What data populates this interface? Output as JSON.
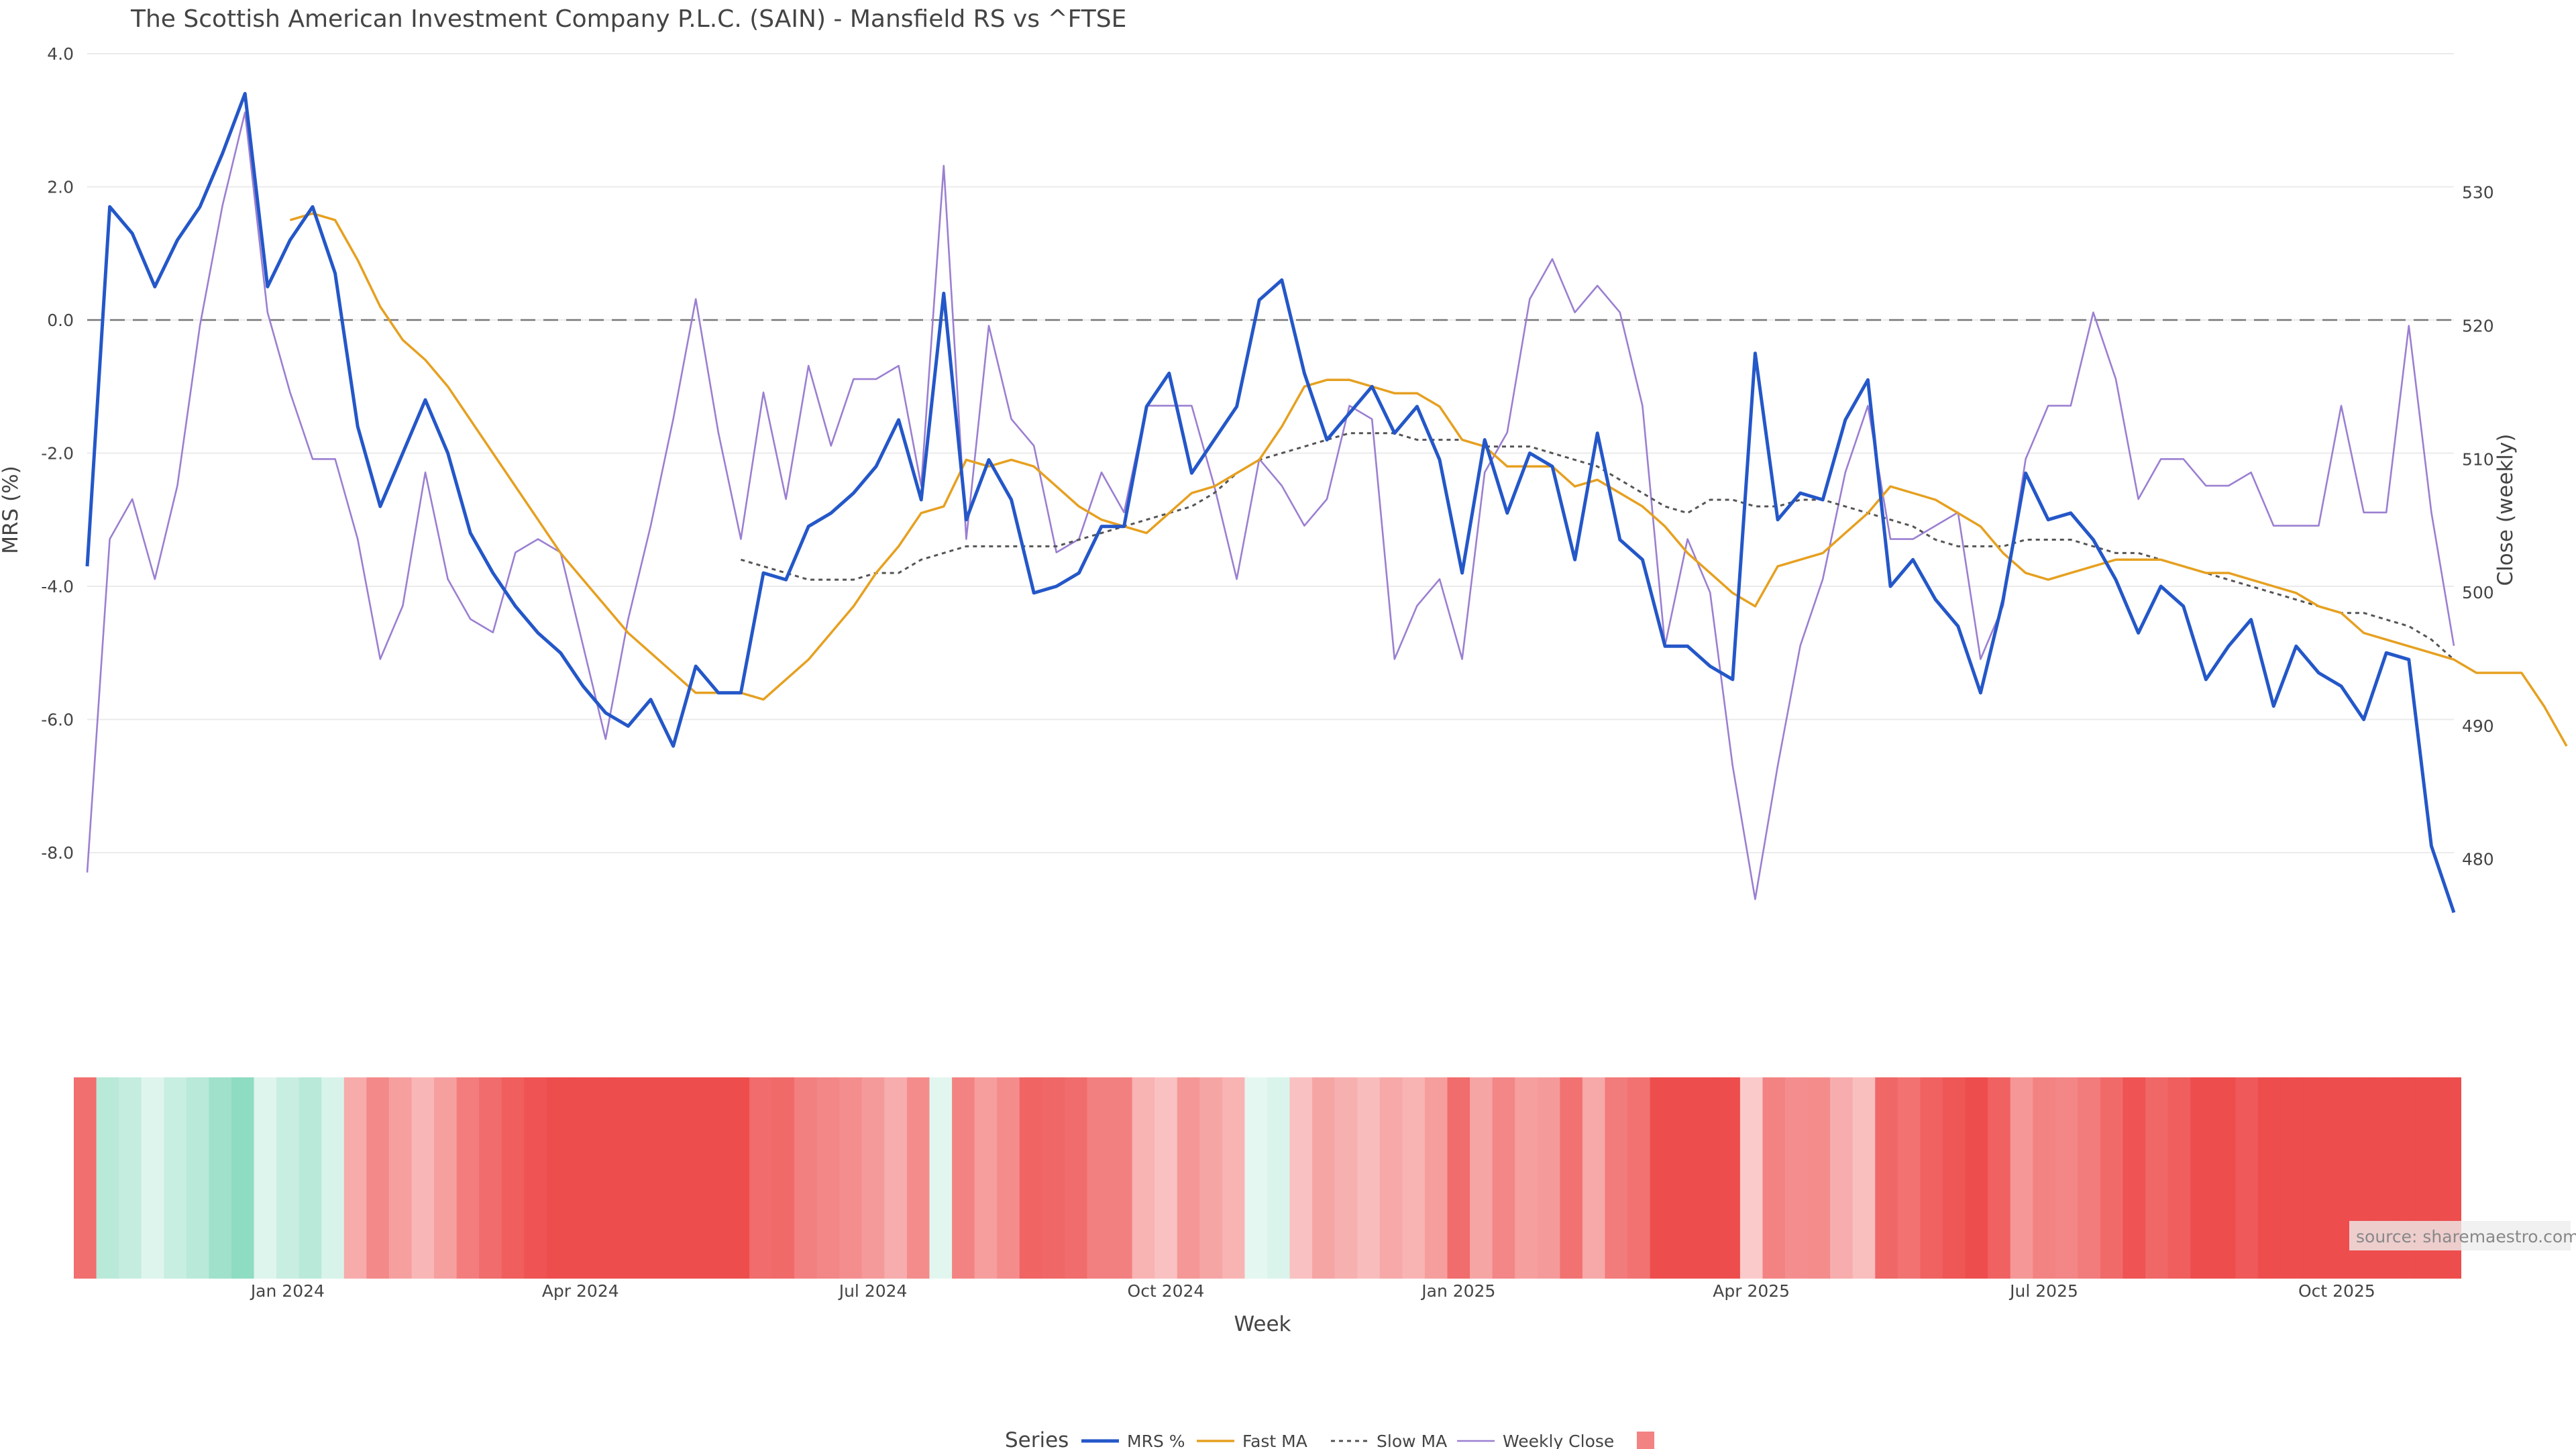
{
  "title": "The Scottish American Investment Company P.L.C. (SAIN) - Mansfield RS vs ^FTSE",
  "source_label": "source: sharemaestro.com",
  "colors": {
    "mrs": "#2457c8",
    "fast_ma": "#e6a020",
    "slow_ma": "#555555",
    "weekly_close": "#9b7fd1",
    "zero_line": "#777777",
    "positive_strip": "#8edcc1",
    "negative_strip": "#ee4d4d"
  },
  "chart_data": {
    "type": "line",
    "title": "The Scottish American Investment Company P.L.C. (SAIN) - Mansfield RS vs ^FTSE",
    "xlabel": "Week",
    "ylabel": "MRS (%)",
    "y2label": "Close (weekly)",
    "ylim": [
      -9.3,
      4.0
    ],
    "y2lim": [
      474,
      540.4
    ],
    "yticks": [
      4.0,
      2.0,
      0.0,
      -2.0,
      -4.0,
      -6.0,
      -8.0
    ],
    "ytick_labels": [
      "4.0",
      "2.0",
      "0.0",
      "-2.0",
      "-4.0",
      "-6.0",
      "-8.0"
    ],
    "y2ticks": [
      530,
      520,
      510,
      500,
      490,
      480
    ],
    "y2tick_labels": [
      "530",
      "520",
      "510",
      "500",
      "490",
      "480"
    ],
    "xticks": [
      {
        "label": "Jan 2024",
        "week": 9
      },
      {
        "label": "Apr 2024",
        "week": 22
      },
      {
        "label": "Jul 2024",
        "week": 35
      },
      {
        "label": "Oct 2024",
        "week": 48
      },
      {
        "label": "Jan 2025",
        "week": 61
      },
      {
        "label": "Apr 2025",
        "week": 74
      },
      {
        "label": "Jul 2025",
        "week": 87
      },
      {
        "label": "Oct 2025",
        "week": 100
      }
    ],
    "zero_line": 0,
    "grid": true,
    "legend_title": "Series",
    "legend_position": "bottom",
    "series": [
      {
        "name": "MRS %",
        "axis": "left",
        "style": "solid",
        "start": 0,
        "values": [
          -3.7,
          1.7,
          1.3,
          0.5,
          1.2,
          1.7,
          2.5,
          3.4,
          0.5,
          1.2,
          1.7,
          0.7,
          -1.6,
          -2.8,
          -2.0,
          -1.2,
          -2.0,
          -3.2,
          -3.8,
          -4.3,
          -4.7,
          -5.0,
          -5.5,
          -5.9,
          -6.1,
          -5.7,
          -6.4,
          -5.2,
          -5.6,
          -5.6,
          -3.8,
          -3.9,
          -3.1,
          -2.9,
          -2.6,
          -2.2,
          -1.5,
          -2.7,
          0.4,
          -3.0,
          -2.1,
          -2.7,
          -4.1,
          -4.0,
          -3.8,
          -3.1,
          -3.1,
          -1.3,
          -0.8,
          -2.3,
          -1.8,
          -1.3,
          0.3,
          0.6,
          -0.8,
          -1.8,
          -1.4,
          -1.0,
          -1.7,
          -1.3,
          -2.1,
          -3.8,
          -1.8,
          -2.9,
          -2.0,
          -2.2,
          -3.6,
          -1.7,
          -3.3,
          -3.6,
          -4.9,
          -4.9,
          -5.2,
          -5.4,
          -0.5,
          -3.0,
          -2.6,
          -2.7,
          -1.5,
          -0.9,
          -4.0,
          -3.6,
          -4.2,
          -4.6,
          -5.6,
          -4.2,
          -2.3,
          -3.0,
          -2.9,
          -3.3,
          -3.9,
          -4.7,
          -4.0,
          -4.3,
          -5.4,
          -4.9,
          -4.5,
          -5.8,
          -4.9,
          -5.3,
          -5.5,
          -6.0,
          -5.0,
          -5.1,
          -7.9,
          -8.9
        ]
      },
      {
        "name": "Fast MA",
        "axis": "left",
        "style": "solid",
        "start": 9,
        "values": [
          1.5,
          1.6,
          1.5,
          0.9,
          0.2,
          -0.3,
          -0.6,
          -1.0,
          -1.5,
          -2.0,
          -2.5,
          -3.0,
          -3.5,
          -3.9,
          -4.3,
          -4.7,
          -5.0,
          -5.3,
          -5.6,
          -5.6,
          -5.6,
          -5.7,
          -5.4,
          -5.1,
          -4.7,
          -4.3,
          -3.8,
          -3.4,
          -2.9,
          -2.8,
          -2.1,
          -2.2,
          -2.1,
          -2.2,
          -2.5,
          -2.8,
          -3.0,
          -3.1,
          -3.2,
          -2.9,
          -2.6,
          -2.5,
          -2.3,
          -2.1,
          -1.6,
          -1.0,
          -0.9,
          -0.9,
          -1.0,
          -1.1,
          -1.1,
          -1.3,
          -1.8,
          -1.9,
          -2.2,
          -2.2,
          -2.2,
          -2.5,
          -2.4,
          -2.6,
          -2.8,
          -3.1,
          -3.5,
          -3.8,
          -4.1,
          -4.3,
          -3.7,
          -3.6,
          -3.5,
          -3.2,
          -2.9,
          -2.5,
          -2.6,
          -2.7,
          -2.9,
          -3.1,
          -3.5,
          -3.8,
          -3.9,
          -3.8,
          -3.7,
          -3.6,
          -3.6,
          -3.6,
          -3.7,
          -3.8,
          -3.8,
          -3.9,
          -4.0,
          -4.1,
          -4.3,
          -4.4,
          -4.7,
          -4.8,
          -4.9,
          -5.0,
          -5.1,
          -5.3,
          -5.3,
          -5.3,
          -5.8,
          -6.4
        ]
      },
      {
        "name": "Slow MA",
        "axis": "left",
        "style": "dotted",
        "start": 29,
        "values": [
          -3.6,
          -3.7,
          -3.8,
          -3.9,
          -3.9,
          -3.9,
          -3.8,
          -3.8,
          -3.6,
          -3.5,
          -3.4,
          -3.4,
          -3.4,
          -3.4,
          -3.4,
          -3.3,
          -3.2,
          -3.1,
          -3.0,
          -2.9,
          -2.8,
          -2.6,
          -2.3,
          -2.1,
          -2.0,
          -1.9,
          -1.8,
          -1.7,
          -1.7,
          -1.7,
          -1.8,
          -1.8,
          -1.8,
          -1.9,
          -1.9,
          -1.9,
          -2.0,
          -2.1,
          -2.2,
          -2.4,
          -2.6,
          -2.8,
          -2.9,
          -2.7,
          -2.7,
          -2.8,
          -2.8,
          -2.7,
          -2.7,
          -2.8,
          -2.9,
          -3.0,
          -3.1,
          -3.3,
          -3.4,
          -3.4,
          -3.4,
          -3.3,
          -3.3,
          -3.3,
          -3.4,
          -3.5,
          -3.5,
          -3.6,
          -3.7,
          -3.8,
          -3.9,
          -4.0,
          -4.1,
          -4.2,
          -4.3,
          -4.4,
          -4.4,
          -4.5,
          -4.6,
          -4.8,
          -5.1
        ]
      },
      {
        "name": "Weekly Close",
        "axis": "right",
        "style": "solid",
        "start": 0,
        "values": [
          479,
          504,
          507,
          501,
          508,
          520,
          529,
          536,
          521,
          515,
          510,
          510,
          504,
          495,
          499,
          509,
          501,
          498,
          497,
          503,
          504,
          503,
          496,
          489,
          498,
          505,
          513,
          522,
          512,
          504,
          515,
          507,
          517,
          511,
          516,
          516,
          517,
          508,
          532,
          504,
          520,
          513,
          511,
          503,
          504,
          509,
          506,
          514,
          514,
          514,
          508,
          501,
          510,
          508,
          505,
          507,
          514,
          513,
          495,
          499,
          501,
          495,
          509,
          512,
          522,
          525,
          521,
          523,
          521,
          514,
          496,
          504,
          500,
          487,
          477,
          487,
          496,
          501,
          509,
          514,
          504,
          504,
          505,
          506,
          495,
          499,
          510,
          514,
          514,
          521,
          516,
          507,
          510,
          510,
          508,
          508,
          509,
          505,
          505,
          505,
          514,
          506,
          506,
          520,
          506,
          496
        ]
      },
      {
        "name": "",
        "type": "heatmap",
        "values": [
          -3.7,
          1.7,
          1.3,
          0.5,
          1.2,
          1.7,
          2.5,
          3.4,
          0.5,
          1.2,
          1.7,
          0.7,
          -1.6,
          -2.8,
          -2.0,
          -1.2,
          -2.0,
          -3.2,
          -3.8,
          -4.3,
          -4.7,
          -5.0,
          -5.5,
          -5.9,
          -6.1,
          -5.7,
          -6.4,
          -5.2,
          -5.6,
          -5.6,
          -3.8,
          -3.9,
          -3.1,
          -2.9,
          -2.6,
          -2.2,
          -1.5,
          -2.7,
          0.4,
          -3.0,
          -2.1,
          -2.7,
          -4.1,
          -4.0,
          -3.8,
          -3.1,
          -3.1,
          -1.3,
          -0.8,
          -2.3,
          -1.8,
          -1.3,
          0.3,
          0.6,
          -0.8,
          -1.8,
          -1.4,
          -1.0,
          -1.7,
          -1.3,
          -2.1,
          -3.8,
          -1.8,
          -2.9,
          -2.0,
          -2.2,
          -3.6,
          -1.7,
          -3.3,
          -3.6,
          -4.9,
          -4.9,
          -5.2,
          -5.4,
          -0.5,
          -3.0,
          -2.6,
          -2.7,
          -1.5,
          -0.9,
          -4.0,
          -3.6,
          -4.2,
          -4.6,
          -5.6,
          -4.2,
          -2.3,
          -3.0,
          -2.9,
          -3.3,
          -3.9,
          -4.7,
          -4.0,
          -4.3,
          -5.4,
          -4.9,
          -4.5,
          -5.8,
          -4.9,
          -5.3,
          -5.5,
          -6.0,
          -5.0,
          -5.1,
          -7.9,
          -8.9
        ]
      }
    ]
  }
}
